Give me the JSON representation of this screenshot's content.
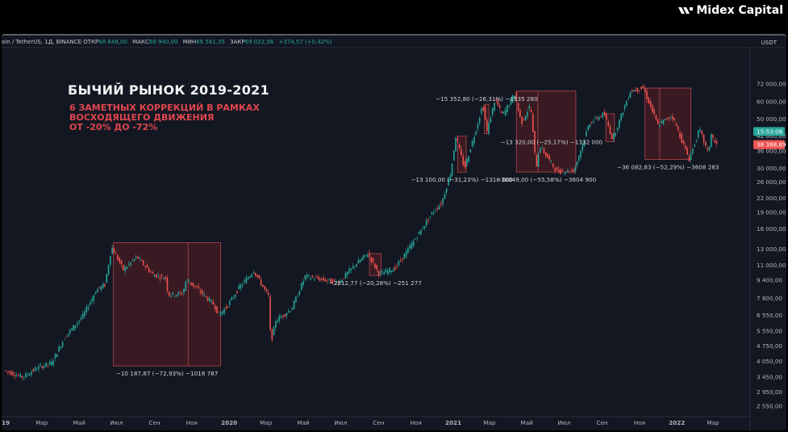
{
  "brand": {
    "name": "Midex Capital",
    "icon": "midex-logo-icon"
  },
  "header": {
    "symbol": "oin / TetherUS, 1Д, BINANCE",
    "open_label": "ОТКР",
    "open": "68 648,00",
    "high_label": "МАКС",
    "high": "69 940,00",
    "low_label": "МИН",
    "low": "66 561,35",
    "close_label": "ЗАКР",
    "close": "69 022,56",
    "change": "+374,57 (+0,42%)",
    "currency": "USDT"
  },
  "overlay": {
    "title": "БЫЧИЙ РЫНОК 2019-2021",
    "subtitle_lines": [
      "6 ЗАМЕТНЫХ КОРРЕКЦИЙ В РАМКАХ",
      "ВОСХОДЯЩЕГО ДВИЖЕНИЯ",
      "ОТ -20% ДО -72%"
    ]
  },
  "colors": {
    "background": "#131722",
    "up": "#26a69a",
    "down": "#ef5350",
    "box_fill": "#5a1e22",
    "box_stroke": "#b2464c",
    "accent_text": "#e0464e",
    "last_price": "#26a69a",
    "prev_price": "#ef5350"
  },
  "chart_data": {
    "type": "candlestick",
    "scale": "log",
    "title": "",
    "xlabel": "",
    "ylabel": "",
    "x_ticks": [
      {
        "date": "2019-01-01",
        "label": "19"
      },
      {
        "date": "2019-03-01",
        "label": "Мар"
      },
      {
        "date": "2019-05-01",
        "label": "Май"
      },
      {
        "date": "2019-07-01",
        "label": "Июл"
      },
      {
        "date": "2019-09-01",
        "label": "Сен"
      },
      {
        "date": "2019-11-01",
        "label": "Ноя"
      },
      {
        "date": "2020-01-01",
        "label": "2020"
      },
      {
        "date": "2020-03-01",
        "label": "Мар"
      },
      {
        "date": "2020-05-01",
        "label": "Май"
      },
      {
        "date": "2020-07-01",
        "label": "Июл"
      },
      {
        "date": "2020-09-01",
        "label": "Сен"
      },
      {
        "date": "2020-11-01",
        "label": "Ноя"
      },
      {
        "date": "2021-01-01",
        "label": "2021"
      },
      {
        "date": "2021-03-01",
        "label": "Мар"
      },
      {
        "date": "2021-05-01",
        "label": "Май"
      },
      {
        "date": "2021-07-01",
        "label": "Июл"
      },
      {
        "date": "2021-09-01",
        "label": "Сен"
      },
      {
        "date": "2021-11-01",
        "label": "Ноя"
      },
      {
        "date": "2022-01-01",
        "label": "2022"
      },
      {
        "date": "2022-03-01",
        "label": "Мар"
      }
    ],
    "y_ticks": [
      {
        "value": 72000,
        "label": "72 000,00"
      },
      {
        "value": 60000,
        "label": "60 000,00"
      },
      {
        "value": 50000,
        "label": "50 000,00"
      },
      {
        "value": 42000,
        "label": "42 000,00"
      },
      {
        "value": 36000,
        "label": "36 000,00"
      },
      {
        "value": 30000,
        "label": "30 000,00"
      },
      {
        "value": 26000,
        "label": "26 000,00"
      },
      {
        "value": 22000,
        "label": "22 000,00"
      },
      {
        "value": 19000,
        "label": "19 000,00"
      },
      {
        "value": 16000,
        "label": "16 000,00"
      },
      {
        "value": 13000,
        "label": "13 000,00"
      },
      {
        "value": 11000,
        "label": "11 000,00"
      },
      {
        "value": 9400,
        "label": "9 400,00"
      },
      {
        "value": 7800,
        "label": "7 800,00"
      },
      {
        "value": 6550,
        "label": "6 550,00"
      },
      {
        "value": 5550,
        "label": "5 550,00"
      },
      {
        "value": 4750,
        "label": "4 750,00"
      },
      {
        "value": 4050,
        "label": "4 050,00"
      },
      {
        "value": 3450,
        "label": "3 450,00"
      },
      {
        "value": 2950,
        "label": "2 950,00"
      },
      {
        "value": 2550,
        "label": "2 550,00"
      }
    ],
    "price_labels": [
      {
        "value": 44000,
        "label": "15:53:06",
        "kind": "time"
      },
      {
        "value": 38388.89,
        "label": "38 388,89",
        "kind": "price"
      }
    ],
    "price_path": [
      [
        "2019-01-01",
        3700
      ],
      [
        "2019-02-01",
        3450
      ],
      [
        "2019-02-25",
        3800
      ],
      [
        "2019-03-20",
        4000
      ],
      [
        "2019-04-10",
        5200
      ],
      [
        "2019-05-10",
        6500
      ],
      [
        "2019-06-01",
        8500
      ],
      [
        "2019-06-15",
        9000
      ],
      [
        "2019-06-26",
        13300
      ],
      [
        "2019-07-15",
        10500
      ],
      [
        "2019-08-06",
        12000
      ],
      [
        "2019-09-01",
        10000
      ],
      [
        "2019-09-23",
        9600
      ],
      [
        "2019-09-26",
        8100
      ],
      [
        "2019-10-20",
        8200
      ],
      [
        "2019-10-26",
        9500
      ],
      [
        "2019-11-15",
        8500
      ],
      [
        "2019-12-10",
        7300
      ],
      [
        "2019-12-18",
        6600
      ],
      [
        "2020-01-01",
        7200
      ],
      [
        "2020-01-20",
        8700
      ],
      [
        "2020-02-13",
        10400
      ],
      [
        "2020-03-01",
        8600
      ],
      [
        "2020-03-08",
        8000
      ],
      [
        "2020-03-12",
        4900
      ],
      [
        "2020-03-20",
        6200
      ],
      [
        "2020-04-15",
        7000
      ],
      [
        "2020-05-07",
        9800
      ],
      [
        "2020-06-01",
        9500
      ],
      [
        "2020-07-01",
        9200
      ],
      [
        "2020-07-27",
        11000
      ],
      [
        "2020-08-17",
        12400
      ],
      [
        "2020-09-05",
        10000
      ],
      [
        "2020-10-01",
        10700
      ],
      [
        "2020-10-21",
        12800
      ],
      [
        "2020-11-10",
        15500
      ],
      [
        "2020-12-01",
        19000
      ],
      [
        "2020-12-16",
        21000
      ],
      [
        "2020-12-31",
        29000
      ],
      [
        "2021-01-08",
        41900
      ],
      [
        "2021-01-22",
        30000
      ],
      [
        "2021-02-10",
        45000
      ],
      [
        "2021-02-21",
        58300
      ],
      [
        "2021-02-28",
        44000
      ],
      [
        "2021-03-13",
        61700
      ],
      [
        "2021-03-25",
        52000
      ],
      [
        "2021-04-14",
        64800
      ],
      [
        "2021-04-25",
        48000
      ],
      [
        "2021-05-10",
        58000
      ],
      [
        "2021-05-19",
        30000
      ],
      [
        "2021-05-25",
        38000
      ],
      [
        "2021-06-22",
        29000
      ],
      [
        "2021-07-20",
        29300
      ],
      [
        "2021-08-14",
        48000
      ],
      [
        "2021-09-07",
        52900
      ],
      [
        "2021-09-21",
        40700
      ],
      [
        "2021-10-20",
        67000
      ],
      [
        "2021-11-10",
        69000
      ],
      [
        "2021-12-04",
        47000
      ],
      [
        "2021-12-27",
        52000
      ],
      [
        "2022-01-24",
        33000
      ],
      [
        "2022-02-10",
        45000
      ],
      [
        "2022-02-24",
        35000
      ],
      [
        "2022-03-01",
        43000
      ],
      [
        "2022-03-08",
        38388.89
      ]
    ],
    "corrections": [
      {
        "x0": "2019-06-26",
        "x1": "2019-12-18",
        "y_top": 13900,
        "y_bottom": 3870,
        "split": "2019-10-26",
        "label": "−10 187,87 (−72,93%) −1018 787",
        "label_pos": "below"
      },
      {
        "x0": "2020-08-17",
        "x1": "2020-09-05",
        "y_top": 12400,
        "y_bottom": 9890,
        "label": "−2512,77 (−20,28%) −251 277",
        "label_pos": "below"
      },
      {
        "x0": "2021-01-08",
        "x1": "2021-01-22",
        "y_top": 41950,
        "y_bottom": 28850,
        "label": "−13 100,00 (−31,23%) −1310 000",
        "label_pos": "below"
      },
      {
        "x0": "2021-02-21",
        "x1": "2021-02-28",
        "y_top": 58350,
        "y_bottom": 43000,
        "label": "−15 352,80 (−26,31%) −1535 280",
        "label_pos": "above"
      },
      {
        "x0": "2021-04-14",
        "x1": "2021-07-20",
        "y_top": 66900,
        "y_bottom": 28900,
        "split": "2021-05-19",
        "label": "−36049,00 (−55,58%) −3604 900",
        "label_pos": "below"
      },
      {
        "x0": "2021-09-07",
        "x1": "2021-09-21",
        "y_top": 52900,
        "y_bottom": 39580,
        "label": "−13 320,00 (−25,17%) −1332 000",
        "label_pos": "left"
      },
      {
        "x0": "2021-11-10",
        "x1": "2022-01-24",
        "y_top": 69000,
        "y_bottom": 32900,
        "split": "2021-12-04",
        "label": "−36 082,83 (−52,29%) −3608 283",
        "label_pos": "below"
      }
    ]
  }
}
